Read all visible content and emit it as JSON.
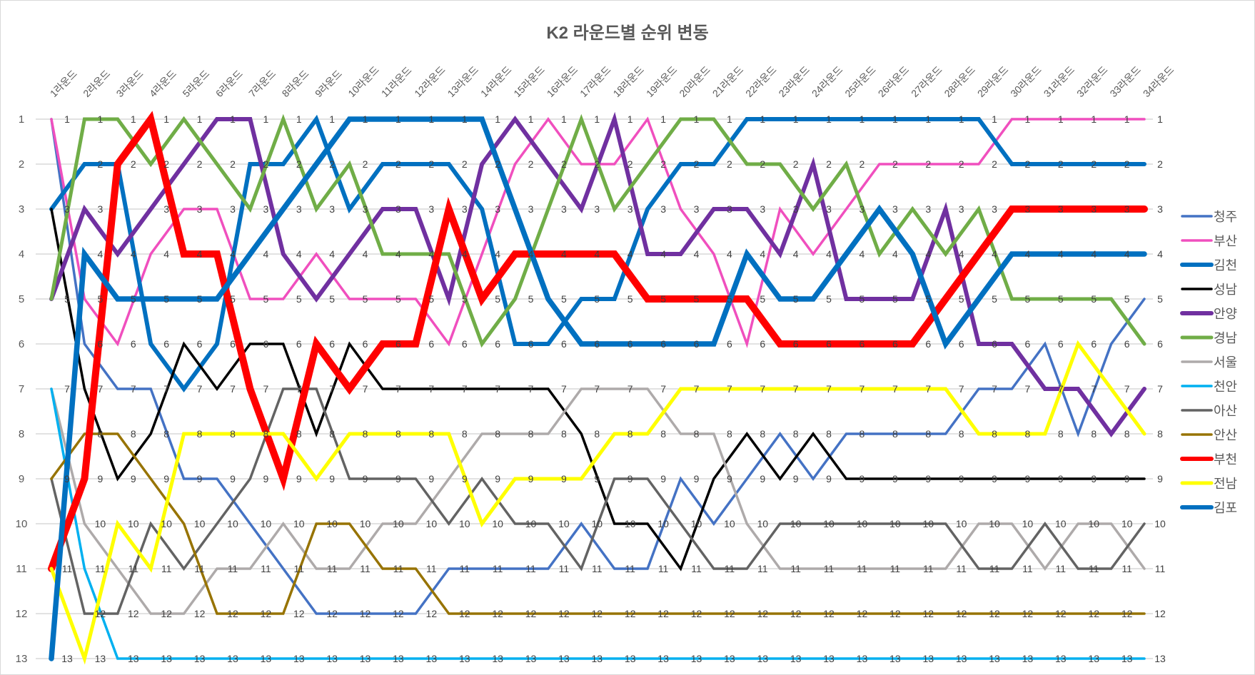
{
  "chart_data": {
    "type": "line",
    "title": "K2 라운드별 순위 변동",
    "xlabel": "",
    "ylabel": "",
    "ylim": [
      1,
      13
    ],
    "y_inverted": true,
    "y_ticks": [
      1,
      2,
      3,
      4,
      5,
      6,
      7,
      8,
      9,
      10,
      11,
      12,
      13
    ],
    "grid": true,
    "legend_position": "right",
    "data_labels": true,
    "categories": [
      "1라운드",
      "2라운드",
      "3라운드",
      "4라운드",
      "5라운드",
      "6라운드",
      "7라운드",
      "8라운드",
      "9라운드",
      "10라운드",
      "11라운드",
      "12라운드",
      "13라운드",
      "14라운드",
      "15라운드",
      "16라운드",
      "17라운드",
      "18라운드",
      "19라운드",
      "20라운드",
      "21라운드",
      "22라운드",
      "23라운드",
      "24라운드",
      "25라운드",
      "26라운드",
      "27라운드",
      "28라운드",
      "29라운드",
      "30라운드",
      "31라운드",
      "32라운드",
      "33라운드",
      "34라운드"
    ],
    "series": [
      {
        "name": "청주",
        "color": "#4472C4",
        "weight": "thin",
        "values": [
          1,
          6,
          7,
          7,
          9,
          9,
          10,
          11,
          12,
          12,
          12,
          12,
          11,
          11,
          11,
          11,
          10,
          11,
          11,
          9,
          10,
          9,
          8,
          9,
          8,
          8,
          8,
          8,
          7,
          7,
          6,
          8,
          6,
          5
        ]
      },
      {
        "name": "부산",
        "color": "#F04FBE",
        "weight": "thin",
        "values": [
          1,
          5,
          6,
          4,
          3,
          3,
          5,
          5,
          4,
          5,
          5,
          5,
          6,
          4,
          2,
          1,
          2,
          2,
          1,
          3,
          4,
          6,
          3,
          4,
          3,
          2,
          2,
          2,
          2,
          1,
          1,
          1,
          1,
          1
        ]
      },
      {
        "name": "김천",
        "color": "#0070C0",
        "weight": "thick",
        "values": [
          3,
          2,
          2,
          6,
          7,
          6,
          2,
          2,
          1,
          3,
          2,
          2,
          2,
          3,
          6,
          6,
          5,
          5,
          3,
          2,
          2,
          1,
          1,
          1,
          1,
          1,
          1,
          1,
          1,
          2,
          2,
          2,
          2,
          2
        ]
      },
      {
        "name": "성남",
        "color": "#000000",
        "weight": "thin",
        "values": [
          3,
          7,
          9,
          8,
          6,
          7,
          6,
          6,
          8,
          6,
          7,
          7,
          7,
          7,
          7,
          7,
          8,
          10,
          10,
          11,
          9,
          8,
          9,
          8,
          9,
          9,
          9,
          9,
          9,
          9,
          9,
          9,
          9,
          9
        ]
      },
      {
        "name": "안양",
        "color": "#7030A0",
        "weight": "thick",
        "values": [
          5,
          3,
          4,
          3,
          2,
          1,
          1,
          4,
          5,
          4,
          3,
          3,
          5,
          2,
          1,
          2,
          3,
          1,
          4,
          4,
          3,
          3,
          4,
          2,
          5,
          5,
          5,
          3,
          6,
          6,
          7,
          7,
          8,
          7
        ]
      },
      {
        "name": "경남",
        "color": "#70AD47",
        "weight": "medium",
        "values": [
          5,
          1,
          1,
          2,
          1,
          2,
          3,
          1,
          3,
          2,
          4,
          4,
          4,
          6,
          5,
          3,
          1,
          3,
          2,
          1,
          1,
          2,
          2,
          3,
          2,
          4,
          3,
          4,
          3,
          5,
          5,
          5,
          5,
          6
        ]
      },
      {
        "name": "서울",
        "color": "#AEAAAA",
        "weight": "thin",
        "values": [
          7,
          10,
          11,
          12,
          12,
          11,
          11,
          10,
          11,
          11,
          10,
          10,
          9,
          8,
          8,
          8,
          7,
          7,
          7,
          8,
          8,
          10,
          11,
          11,
          11,
          11,
          11,
          11,
          10,
          10,
          11,
          10,
          10,
          11
        ]
      },
      {
        "name": "천안",
        "color": "#00B0F0",
        "weight": "thin",
        "values": [
          7,
          11,
          13,
          13,
          13,
          13,
          13,
          13,
          13,
          13,
          13,
          13,
          13,
          13,
          13,
          13,
          13,
          13,
          13,
          13,
          13,
          13,
          13,
          13,
          13,
          13,
          13,
          13,
          13,
          13,
          13,
          13,
          13,
          13
        ]
      },
      {
        "name": "아산",
        "color": "#636363",
        "weight": "thin",
        "values": [
          9,
          12,
          12,
          10,
          11,
          10,
          9,
          7,
          7,
          9,
          9,
          9,
          10,
          9,
          10,
          10,
          11,
          9,
          9,
          10,
          11,
          11,
          10,
          10,
          10,
          10,
          10,
          10,
          11,
          11,
          10,
          11,
          11,
          10
        ]
      },
      {
        "name": "안산",
        "color": "#977300",
        "weight": "thin",
        "values": [
          9,
          8,
          8,
          9,
          10,
          12,
          12,
          12,
          10,
          10,
          11,
          11,
          12,
          12,
          12,
          12,
          12,
          12,
          12,
          12,
          12,
          12,
          12,
          12,
          12,
          12,
          12,
          12,
          12,
          12,
          12,
          12,
          12,
          12
        ]
      },
      {
        "name": "부천",
        "color": "#FF0000",
        "weight": "heavy",
        "values": [
          11,
          9,
          2,
          1,
          4,
          4,
          7,
          9,
          6,
          7,
          6,
          6,
          3,
          5,
          4,
          4,
          4,
          4,
          5,
          5,
          5,
          5,
          6,
          6,
          6,
          6,
          6,
          5,
          4,
          3,
          3,
          3,
          3,
          3
        ]
      },
      {
        "name": "전남",
        "color": "#FFFF00",
        "weight": "medium",
        "values": [
          11,
          13,
          10,
          11,
          8,
          8,
          8,
          8,
          9,
          8,
          8,
          8,
          8,
          10,
          9,
          9,
          9,
          8,
          8,
          7,
          7,
          7,
          7,
          7,
          7,
          7,
          7,
          7,
          8,
          8,
          8,
          6,
          7,
          8
        ]
      },
      {
        "name": "김포",
        "color": "#0070C0",
        "weight": "heavier",
        "values": [
          13,
          4,
          5,
          5,
          5,
          5,
          4,
          3,
          2,
          1,
          1,
          1,
          1,
          1,
          3,
          5,
          6,
          6,
          6,
          6,
          6,
          4,
          5,
          5,
          4,
          3,
          4,
          6,
          5,
          4,
          4,
          4,
          4,
          4
        ]
      }
    ]
  }
}
